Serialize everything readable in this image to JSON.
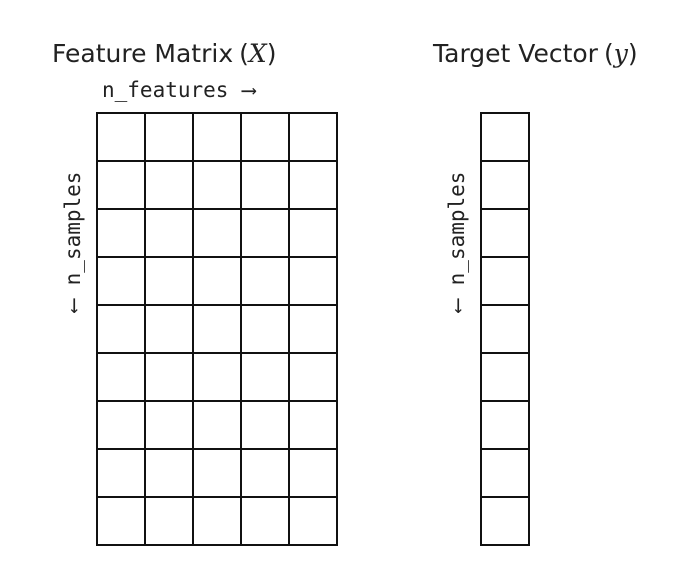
{
  "matrix": {
    "title": "Feature Matrix",
    "symbol": "X",
    "column_label": "n_features",
    "row_label": "n_samples",
    "rows": 9,
    "cols": 5
  },
  "vector": {
    "title": "Target Vector",
    "symbol": "y",
    "row_label": "n_samples",
    "rows": 9,
    "cols": 1
  },
  "arrows": {
    "right": "⟶",
    "left": "⟵"
  }
}
